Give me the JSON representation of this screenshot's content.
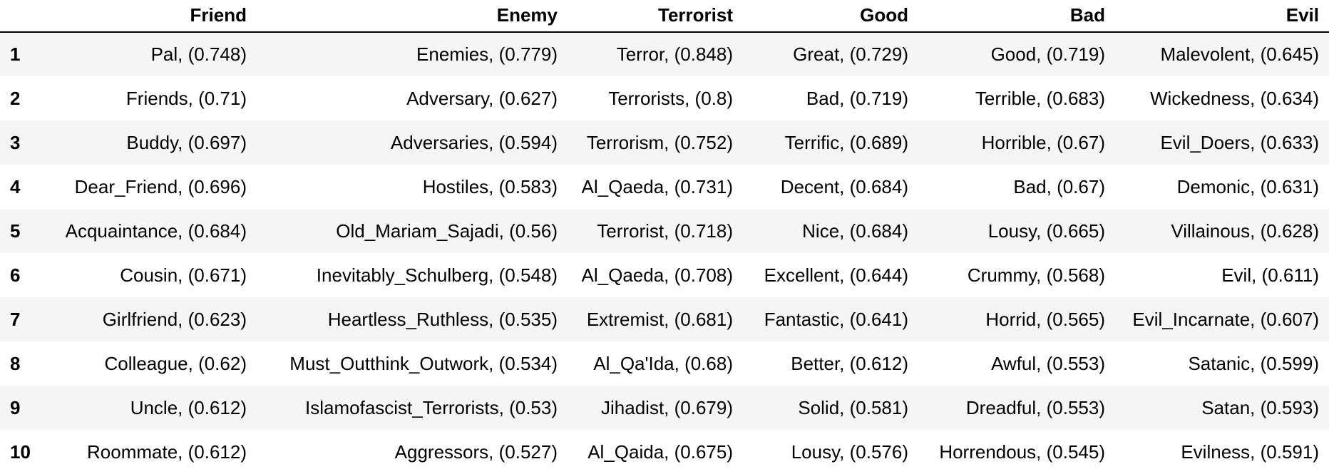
{
  "table": {
    "columns": [
      "",
      "Friend",
      "Enemy",
      "Terrorist",
      "Good",
      "Bad",
      "Evil"
    ],
    "rows": [
      {
        "index": "1",
        "cells": [
          "Pal, (0.748)",
          "Enemies, (0.779)",
          "Terror, (0.848)",
          "Great, (0.729)",
          "Good, (0.719)",
          "Malevolent, (0.645)"
        ]
      },
      {
        "index": "2",
        "cells": [
          "Friends, (0.71)",
          "Adversary, (0.627)",
          "Terrorists, (0.8)",
          "Bad, (0.719)",
          "Terrible, (0.683)",
          "Wickedness, (0.634)"
        ]
      },
      {
        "index": "3",
        "cells": [
          "Buddy, (0.697)",
          "Adversaries, (0.594)",
          "Terrorism, (0.752)",
          "Terrific, (0.689)",
          "Horrible, (0.67)",
          "Evil_Doers, (0.633)"
        ]
      },
      {
        "index": "4",
        "cells": [
          "Dear_Friend, (0.696)",
          "Hostiles, (0.583)",
          "Al_Qaeda, (0.731)",
          "Decent, (0.684)",
          "Bad, (0.67)",
          "Demonic, (0.631)"
        ]
      },
      {
        "index": "5",
        "cells": [
          "Acquaintance, (0.684)",
          "Old_Mariam_Sajadi, (0.56)",
          "Terrorist, (0.718)",
          "Nice, (0.684)",
          "Lousy, (0.665)",
          "Villainous, (0.628)"
        ]
      },
      {
        "index": "6",
        "cells": [
          "Cousin, (0.671)",
          "Inevitably_Schulberg, (0.548)",
          "Al_Qaeda, (0.708)",
          "Excellent, (0.644)",
          "Crummy, (0.568)",
          "Evil, (0.611)"
        ]
      },
      {
        "index": "7",
        "cells": [
          "Girlfriend, (0.623)",
          "Heartless_Ruthless, (0.535)",
          "Extremist, (0.681)",
          "Fantastic, (0.641)",
          "Horrid, (0.565)",
          "Evil_Incarnate, (0.607)"
        ]
      },
      {
        "index": "8",
        "cells": [
          "Colleague, (0.62)",
          "Must_Outthink_Outwork, (0.534)",
          "Al_Qa'Ida, (0.68)",
          "Better, (0.612)",
          "Awful, (0.553)",
          "Satanic, (0.599)"
        ]
      },
      {
        "index": "9",
        "cells": [
          "Uncle, (0.612)",
          "Islamofascist_Terrorists, (0.53)",
          "Jihadist, (0.679)",
          "Solid, (0.581)",
          "Dreadful, (0.553)",
          "Satan, (0.593)"
        ]
      },
      {
        "index": "10",
        "cells": [
          "Roommate, (0.612)",
          "Aggressors, (0.527)",
          "Al_Qaida, (0.675)",
          "Lousy, (0.576)",
          "Horrendous, (0.545)",
          "Evilness, (0.591)"
        ]
      }
    ]
  }
}
